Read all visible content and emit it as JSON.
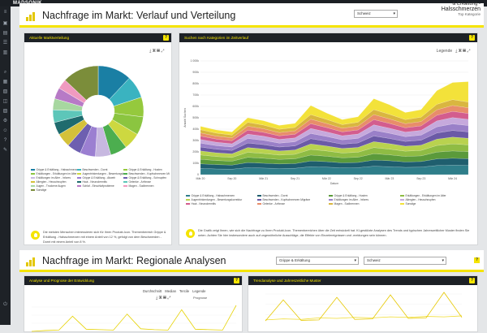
{
  "app": {
    "logo": "MADSONIK"
  },
  "header1": {
    "title": "Nachfrage im Markt: Verlauf und Verteilung",
    "select": "Schweiz",
    "card_line1": "& Erkältung -",
    "card_line2": "Halsschmerzen",
    "card_line3": "Top Kategorie"
  },
  "panel_left": {
    "title": "Aktuelle Marktverteilung",
    "note": "Die meisten Menschen interessieren sich für Ihren Produkt-Icon. Themenbereich Grippe & Erkältung - Halsschmerzen mit einem Anteil von 12 %, gefolgt von dem Beschwerden - Dornt mit einem Anteil von 8 %."
  },
  "panel_right": {
    "title": "Suchen nach Kategorien im Zeitverlauf",
    "legend_label": "Legende",
    "note": "Die Grafik zeigt Ihnen, wie sich die Nachfrage zu Ihren Produkt-Icon. Themenbereichen über die Zeit entwickelt hat. KI-gestützte Analysen des Trends und typischen Jahreszeitlicher Muster finden Sie unten. Achten Sie hier insbesondere auch auf ungewöhnliche Ausschläge, die Effekte von Einzelereignissen und -meldungen sein können."
  },
  "header2": {
    "title": "Nachfrage im Markt: Regionale Analysen",
    "select1": "Grippe & Erkältung",
    "select2": "Schweiz"
  },
  "panel_bl": {
    "title": "Analyse und Prognose der Entwicklung",
    "toggles": [
      "Durchschnitt",
      "Median",
      "Tercile",
      "Legende"
    ],
    "badge": "Prognose"
  },
  "panel_br": {
    "title": "Trendanalyse und Jahreszeitliche Muster"
  },
  "icons": [
    "menu-icon",
    "dashboard-icon",
    "chart-icon",
    "search-icon",
    "list-icon",
    "settings-icon",
    "tool-icon",
    "user-icon",
    "logout-icon",
    "question-icon",
    "download-icon",
    "image-icon",
    "pdf-icon",
    "expand-icon"
  ],
  "colors": {
    "accent": "#f5e400",
    "header_bg": "#1d2126",
    "sidebar_bg": "#1e2227"
  },
  "chart_data": [
    {
      "type": "pie",
      "title": "Aktuelle Marktverteilung",
      "labels": [
        "Grippe & Erkältung - Halsschmerzen",
        "Beschwerden - Dornt",
        "Grippe & Erkältung - Husten",
        "Erkältungen - Erkältungen im Alter",
        "Augentrinkenlungen - Bewertungskorrektur",
        "Beschwerden - Kopfschmerzen Migräne",
        "Erkältungen im Alter - Infores",
        "Grippe & Erkältung - Abweh",
        "Grippe & Erkältung - Schnupfen",
        "Allergien - Heuschnupfen",
        "Haut - Neurodermitis",
        "Gelenke - Arthrose",
        "Augen - Trockene Augen",
        "Schlaf - Einschlafprobleme",
        "Magen - Sodbrennen",
        "Sonstige"
      ],
      "values": [
        12,
        8,
        7,
        6.5,
        6,
        6,
        5.5,
        5.5,
        5,
        5,
        4.5,
        4.5,
        4,
        4,
        3.5,
        13
      ],
      "colors": [
        "#1a7fa4",
        "#3ab3c0",
        "#95c93d",
        "#8bc540",
        "#cdd840",
        "#4cae4f",
        "#c7b8e0",
        "#9b7fd1",
        "#6d5fb0",
        "#d4c13a",
        "#1f6b6e",
        "#5dc6b9",
        "#a7d7a0",
        "#b77ac6",
        "#f09ac0",
        "#7b8d3a"
      ],
      "donut": true
    },
    {
      "type": "area",
      "title": "Suchen nach Kategorien im Zeitverlauf",
      "stacked": true,
      "x": [
        "Mär 20",
        "Jun 20",
        "Sep 20",
        "Dez 20",
        "Mär 21",
        "Jun 21",
        "Sep 21",
        "Dez 21",
        "Mär 22",
        "Jun 22",
        "Sep 22",
        "Dez 22",
        "Mär 23",
        "Jun 23",
        "Sep 23",
        "Dez 23",
        "Mär 24",
        "Jun 24"
      ],
      "xlabel": "Datum",
      "ylabel": "Anzahl Suchen",
      "ylim": [
        0,
        1000000
      ],
      "yticks": [
        "0",
        "100k",
        "200k",
        "300k",
        "400k",
        "500k",
        "600k",
        "700k",
        "800k",
        "900k",
        "1 000k"
      ],
      "series": [
        {
          "name": "Grippe & Erkältung - Halsschmerzen",
          "color": "#2f7e8a",
          "values": [
            55,
            50,
            48,
            62,
            58,
            54,
            56,
            70,
            66,
            60,
            62,
            74,
            70,
            64,
            66,
            80,
            84,
            82
          ]
        },
        {
          "name": "Beschwerden - Dornt",
          "color": "#1f5e6e",
          "values": [
            40,
            38,
            36,
            44,
            42,
            40,
            41,
            50,
            48,
            44,
            45,
            54,
            52,
            48,
            49,
            58,
            60,
            58
          ]
        },
        {
          "name": "Grippe & Erkältung - Husten",
          "color": "#5b9a3b",
          "values": [
            40,
            36,
            34,
            46,
            44,
            40,
            42,
            52,
            48,
            44,
            46,
            56,
            52,
            48,
            50,
            60,
            64,
            62
          ]
        },
        {
          "name": "Erkältungen - Erkältungen im Alter",
          "color": "#8fbc44",
          "values": [
            38,
            35,
            33,
            44,
            42,
            38,
            40,
            50,
            46,
            42,
            44,
            54,
            50,
            46,
            48,
            58,
            62,
            60
          ]
        },
        {
          "name": "Augentrinkenlungen - Bewertungskorrektur",
          "color": "#b9d24f",
          "values": [
            36,
            33,
            32,
            42,
            40,
            36,
            38,
            48,
            44,
            40,
            42,
            52,
            48,
            44,
            46,
            56,
            60,
            58
          ]
        },
        {
          "name": "Beschwerden - Kopfschmerzen Migräne",
          "color": "#6b5aa6",
          "values": [
            34,
            32,
            30,
            40,
            38,
            35,
            36,
            46,
            42,
            38,
            40,
            50,
            46,
            42,
            44,
            54,
            58,
            56
          ]
        },
        {
          "name": "Erkältungen im Alter - Infores",
          "color": "#9a80c8",
          "values": [
            34,
            31,
            30,
            40,
            38,
            34,
            36,
            46,
            42,
            38,
            40,
            50,
            46,
            42,
            44,
            54,
            58,
            56
          ]
        },
        {
          "name": "Allergien - Heuschnupfen",
          "color": "#c6a9dc",
          "values": [
            32,
            30,
            28,
            38,
            36,
            33,
            34,
            44,
            40,
            36,
            38,
            48,
            44,
            40,
            42,
            52,
            56,
            54
          ]
        },
        {
          "name": "Haut - Neurodermitis",
          "color": "#d35d8e",
          "values": [
            30,
            28,
            27,
            36,
            34,
            31,
            32,
            42,
            38,
            34,
            36,
            46,
            42,
            38,
            40,
            50,
            54,
            52
          ]
        },
        {
          "name": "Gelenke - Arthrose",
          "color": "#e88d6a",
          "values": [
            28,
            26,
            25,
            34,
            32,
            29,
            30,
            40,
            36,
            32,
            34,
            44,
            40,
            36,
            38,
            48,
            52,
            50
          ]
        },
        {
          "name": "Magen - Sodbrennen",
          "color": "#d9b640",
          "values": [
            28,
            26,
            25,
            34,
            32,
            29,
            30,
            40,
            36,
            32,
            34,
            44,
            40,
            36,
            38,
            48,
            52,
            50
          ]
        },
        {
          "name": "Sonstige",
          "color": "#f3e23a",
          "values": [
            30,
            28,
            27,
            40,
            38,
            34,
            36,
            80,
            56,
            44,
            48,
            96,
            84,
            62,
            66,
            120,
            150,
            180
          ]
        }
      ]
    },
    {
      "type": "line",
      "title": "Analyse und Prognose der Entwicklung",
      "series": [
        {
          "name": "",
          "color": "#e6d200",
          "values": [
            0,
            2,
            3,
            35,
            5,
            4,
            3,
            40,
            6,
            4,
            3,
            50,
            5,
            4,
            3,
            60
          ]
        }
      ]
    },
    {
      "type": "line",
      "title": "Trendanalyse und Jahreszeitliche Muster",
      "series": [
        {
          "name": "",
          "color": "#f0dc30",
          "values": [
            10,
            12,
            11,
            14,
            13,
            15,
            14,
            16,
            15,
            17,
            16,
            18
          ]
        },
        {
          "name": "",
          "color": "#e6c800",
          "values": [
            8,
            50,
            9,
            10,
            55,
            11,
            12,
            60,
            13,
            14,
            65,
            15
          ]
        }
      ]
    }
  ]
}
